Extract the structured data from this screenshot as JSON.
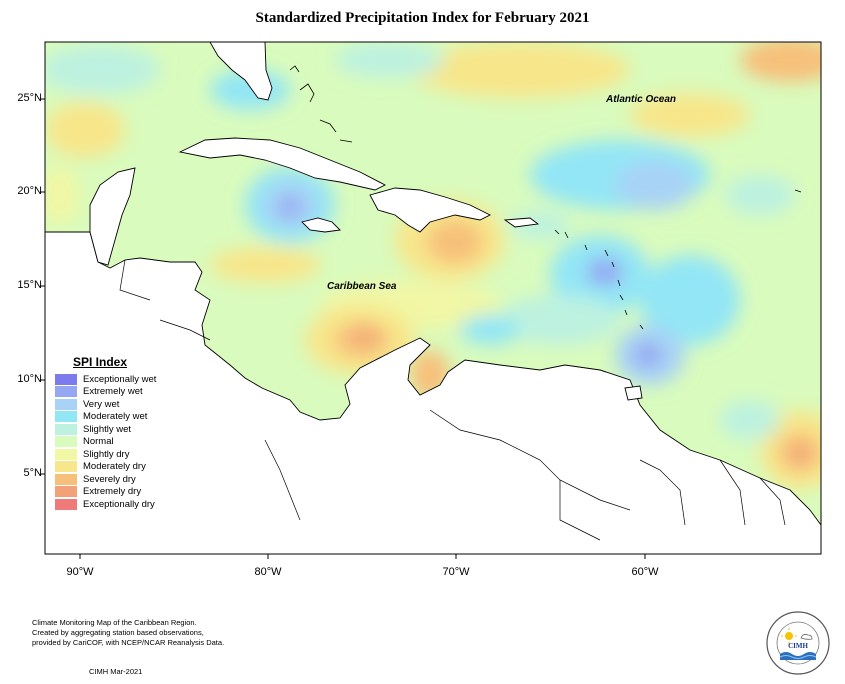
{
  "title": "Standardized Precipitation Index for February 2021",
  "axes": {
    "lat_labels": [
      "25°N",
      "20°N",
      "15°N",
      "10°N",
      "5°N"
    ],
    "lon_labels": [
      "90°W",
      "80°W",
      "70°W",
      "60°W"
    ]
  },
  "regions": {
    "atlantic": "Atlantic Ocean",
    "caribbean": "Caribbean Sea"
  },
  "legend": {
    "title": "SPI Index",
    "items": [
      {
        "label": "Exceptionally wet",
        "color": "#7b7bee"
      },
      {
        "label": "Extremely wet",
        "color": "#95a6f2"
      },
      {
        "label": "Very wet",
        "color": "#a8d3f6"
      },
      {
        "label": "Moderately wet",
        "color": "#93e6f6"
      },
      {
        "label": "Slightly wet",
        "color": "#bdf2e0"
      },
      {
        "label": "Normal",
        "color": "#d9fbbd"
      },
      {
        "label": "Slightly dry",
        "color": "#f1f7a5"
      },
      {
        "label": "Moderately dry",
        "color": "#f8e68a"
      },
      {
        "label": "Severely dry",
        "color": "#f7c07a"
      },
      {
        "label": "Extremely dry",
        "color": "#f3a178"
      },
      {
        "label": "Exceptionally dry",
        "color": "#ee7a7a"
      }
    ]
  },
  "footer": {
    "line1": "Climate Monitoring Map of the Caribbean Region.",
    "line2": "Created by aggregating station based observations,",
    "line3": "provided by CariCOF, with NCEP/NCAR Reanalysis Data.",
    "date": "CIMH Mar-2021"
  },
  "logo": {
    "text": "CIMH",
    "ring_text": "Caribbean Institute for Meteorology and Hydrology"
  }
}
